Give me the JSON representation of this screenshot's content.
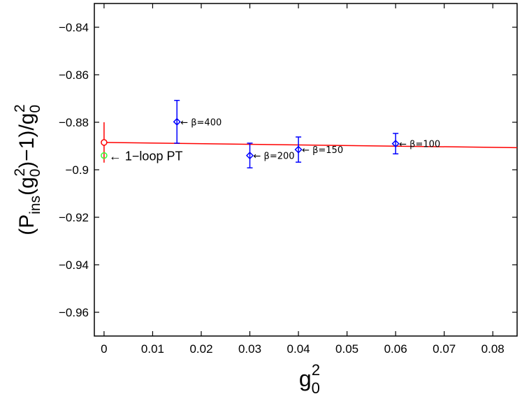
{
  "chart_data": {
    "type": "scatter",
    "title": "",
    "xlabel": {
      "base": "g",
      "sub": "0",
      "sup": "2"
    },
    "ylabel": {
      "parts": [
        {
          "text": "(P",
          "mode": "normal"
        },
        {
          "text": "ins",
          "mode": "sub"
        },
        {
          "text": "(g",
          "mode": "normal"
        },
        {
          "text": "0",
          "mode": "sub"
        },
        {
          "text": "2",
          "mode": "sup"
        },
        {
          "text": ")−1)/g",
          "mode": "normal"
        },
        {
          "text": "0",
          "mode": "sub"
        },
        {
          "text": "2",
          "mode": "sup"
        }
      ]
    },
    "xlim": [
      -0.002,
      0.085
    ],
    "ylim": [
      -0.97,
      -0.83
    ],
    "xticks": [
      0,
      0.01,
      0.02,
      0.03,
      0.04,
      0.05,
      0.06,
      0.07,
      0.08
    ],
    "xtick_labels": [
      "0",
      "0.01",
      "0.02",
      "0.03",
      "0.04",
      "0.05",
      "0.06",
      "0.07",
      "0.08"
    ],
    "yticks": [
      -0.96,
      -0.94,
      -0.92,
      -0.9,
      -0.88,
      -0.86,
      -0.84
    ],
    "ytick_labels": [
      "−0.96",
      "−0.94",
      "−0.92",
      "−0.9",
      "−0.88",
      "−0.86",
      "−0.84"
    ],
    "grid": false,
    "colors": {
      "data": "#0000ff",
      "fit": "#ff0000",
      "pt": "#33ff33",
      "axes": "#000000"
    },
    "series": [
      {
        "kind": "data",
        "marker": "diamond",
        "points": [
          {
            "x": 0.015,
            "y": -0.8798,
            "err": 0.009,
            "label": "← β=400"
          },
          {
            "x": 0.03,
            "y": -0.894,
            "err": 0.0052,
            "label": "← β=200"
          },
          {
            "x": 0.04,
            "y": -0.8915,
            "err": 0.0053,
            "label": "← β=150"
          },
          {
            "x": 0.06,
            "y": -0.889,
            "err": 0.0043,
            "label": "← β=100"
          }
        ]
      },
      {
        "kind": "fit",
        "line": {
          "x0": 0,
          "y0": -0.8885,
          "x1": 0.085,
          "y1": -0.8907
        },
        "extrapolated": {
          "x": 0,
          "y": -0.8885,
          "err": 0.0085
        }
      },
      {
        "kind": "pt",
        "marker": "circle",
        "point": {
          "x": 0,
          "y": -0.894,
          "label": "← 1−loop PT"
        }
      }
    ]
  }
}
